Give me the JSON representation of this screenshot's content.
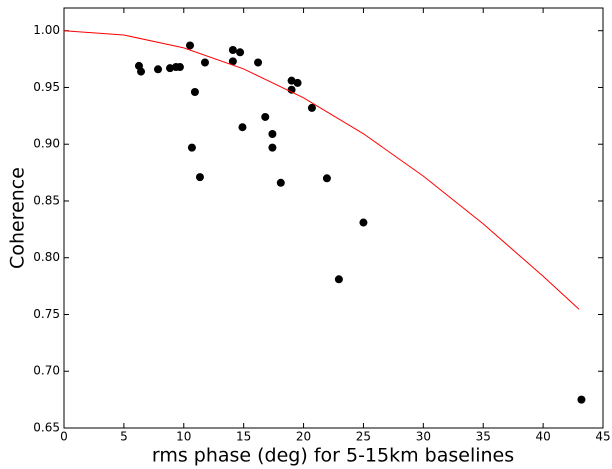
{
  "chart_data": {
    "type": "scatter",
    "xlabel": "rms phase (deg) for 5-15km baselines",
    "ylabel": "Coherence",
    "xlim": [
      0,
      45
    ],
    "xticks": [
      0,
      5,
      10,
      15,
      20,
      25,
      30,
      35,
      40,
      45
    ],
    "ylim": [
      0.65,
      1.02
    ],
    "yticks": [
      {
        "value": 0.65,
        "label": "0.65"
      },
      {
        "value": 0.7,
        "label": "0.70"
      },
      {
        "value": 0.75,
        "label": "0.75"
      },
      {
        "value": 0.8,
        "label": "0.80"
      },
      {
        "value": 0.85,
        "label": "0.85"
      },
      {
        "value": 0.9,
        "label": "0.90"
      },
      {
        "value": 0.95,
        "label": "0.95"
      },
      {
        "value": 1.0,
        "label": "1.00"
      }
    ],
    "series": [
      {
        "type": "scatter",
        "color": "#000000",
        "x": [
          6.26,
          6.43,
          7.85,
          8.85,
          9.35,
          9.68,
          10.52,
          10.93,
          10.68,
          11.35,
          11.77,
          14.1,
          14.1,
          14.7,
          14.9,
          16.2,
          16.8,
          17.4,
          17.4,
          18.1,
          19.0,
          19.0,
          19.5,
          20.7,
          21.95,
          22.95,
          25.0,
          43.2
        ],
        "values": [
          0.969,
          0.964,
          0.966,
          0.967,
          0.968,
          0.968,
          0.987,
          0.946,
          0.897,
          0.871,
          0.972,
          0.983,
          0.973,
          0.981,
          0.915,
          0.972,
          0.924,
          0.909,
          0.897,
          0.866,
          0.956,
          0.948,
          0.954,
          0.932,
          0.87,
          0.781,
          0.831,
          0.675
        ]
      },
      {
        "type": "line",
        "color": "#ff0000",
        "x": [
          0,
          5,
          10,
          15,
          20,
          25,
          30,
          35,
          40,
          43
        ],
        "values": [
          1.0,
          0.9962,
          0.9849,
          0.9663,
          0.9409,
          0.9092,
          0.8719,
          0.8298,
          0.7837,
          0.7546
        ]
      }
    ]
  }
}
